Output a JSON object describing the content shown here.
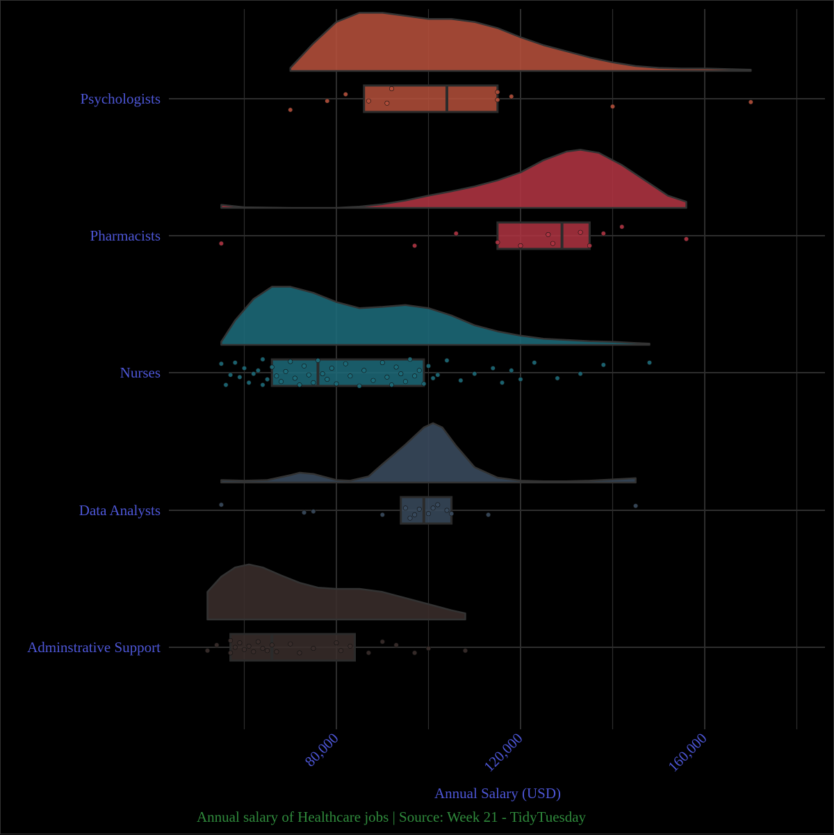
{
  "chart_data": {
    "type": "raincloud",
    "caption": "Annual salary of Healthcare jobs | Source: Week 21 - TidyTuesday",
    "xlabel": "Annual Salary (USD)",
    "ylabel": "",
    "xlim": [
      40000,
      180000
    ],
    "x_ticks": [
      80000,
      120000,
      160000
    ],
    "x_tick_labels": [
      "80,000",
      "120,000",
      "160,000"
    ],
    "x_minor_gridlines": [
      60000,
      100000,
      140000,
      180000
    ],
    "grid": true,
    "legend": "none",
    "colors": {
      "background": "#000000",
      "grid": "#2e2e2e",
      "axis_text": "#4d56d6",
      "caption": "#2f8a3c",
      "box_outline": "#2b2b2b"
    },
    "categories": [
      "Psychologists",
      "Pharmacists",
      "Nurses",
      "Data Analysts",
      "Adminstrative Support"
    ],
    "series": [
      {
        "name": "Psychologists",
        "color": "#b5503b",
        "box": {
          "q1": 86000,
          "median": 104000,
          "q3": 115000
        },
        "density": [
          [
            70000,
            0.05
          ],
          [
            75000,
            0.45
          ],
          [
            80000,
            0.8
          ],
          [
            85000,
            0.95
          ],
          [
            90000,
            0.95
          ],
          [
            95000,
            0.9
          ],
          [
            100000,
            0.85
          ],
          [
            105000,
            0.85
          ],
          [
            110000,
            0.8
          ],
          [
            115000,
            0.7
          ],
          [
            120000,
            0.55
          ],
          [
            125000,
            0.42
          ],
          [
            130000,
            0.32
          ],
          [
            135000,
            0.22
          ],
          [
            140000,
            0.14
          ],
          [
            145000,
            0.08
          ],
          [
            150000,
            0.05
          ],
          [
            155000,
            0.04
          ],
          [
            160000,
            0.04
          ],
          [
            165000,
            0.03
          ],
          [
            170000,
            0.02
          ]
        ],
        "points": [
          [
            70000,
            0.5
          ],
          [
            78000,
            0.1
          ],
          [
            82000,
            -0.2
          ],
          [
            87000,
            0.1
          ],
          [
            91000,
            0.2
          ],
          [
            92000,
            -0.45
          ],
          [
            115000,
            -0.3
          ],
          [
            115000,
            0.05
          ],
          [
            118000,
            -0.1
          ],
          [
            140000,
            0.35
          ],
          [
            170000,
            0.15
          ]
        ]
      },
      {
        "name": "Pharmacists",
        "color": "#b03442",
        "box": {
          "q1": 115000,
          "median": 129000,
          "q3": 135000
        },
        "density": [
          [
            55000,
            0.05
          ],
          [
            60000,
            0.01
          ],
          [
            70000,
            0.0
          ],
          [
            80000,
            0.0
          ],
          [
            85000,
            0.02
          ],
          [
            90000,
            0.06
          ],
          [
            95000,
            0.12
          ],
          [
            100000,
            0.2
          ],
          [
            105000,
            0.27
          ],
          [
            110000,
            0.35
          ],
          [
            115000,
            0.45
          ],
          [
            120000,
            0.58
          ],
          [
            125000,
            0.78
          ],
          [
            130000,
            0.92
          ],
          [
            133000,
            0.95
          ],
          [
            137000,
            0.9
          ],
          [
            142000,
            0.7
          ],
          [
            148000,
            0.4
          ],
          [
            152000,
            0.2
          ],
          [
            156000,
            0.1
          ]
        ],
        "points": [
          [
            55000,
            0.35
          ],
          [
            97000,
            0.45
          ],
          [
            106000,
            -0.1
          ],
          [
            115000,
            0.3
          ],
          [
            120000,
            0.45
          ],
          [
            126000,
            -0.05
          ],
          [
            127000,
            0.35
          ],
          [
            133000,
            -0.15
          ],
          [
            135000,
            0.45
          ],
          [
            138000,
            -0.1
          ],
          [
            142000,
            -0.4
          ],
          [
            156000,
            0.15
          ]
        ]
      },
      {
        "name": "Nurses",
        "color": "#1d6b7a",
        "box": {
          "q1": 66000,
          "median": 76000,
          "q3": 99000
        },
        "density": [
          [
            55000,
            0.05
          ],
          [
            58000,
            0.4
          ],
          [
            62000,
            0.75
          ],
          [
            66000,
            0.95
          ],
          [
            70000,
            0.95
          ],
          [
            75000,
            0.85
          ],
          [
            80000,
            0.7
          ],
          [
            85000,
            0.6
          ],
          [
            90000,
            0.62
          ],
          [
            95000,
            0.65
          ],
          [
            100000,
            0.6
          ],
          [
            105000,
            0.48
          ],
          [
            110000,
            0.32
          ],
          [
            115000,
            0.22
          ],
          [
            120000,
            0.15
          ],
          [
            125000,
            0.1
          ],
          [
            130000,
            0.08
          ],
          [
            135000,
            0.06
          ],
          [
            140000,
            0.05
          ],
          [
            145000,
            0.03
          ],
          [
            148000,
            0.02
          ]
        ],
        "points": [
          [
            55000,
            -0.4
          ],
          [
            56000,
            0.55
          ],
          [
            57000,
            0.1
          ],
          [
            58000,
            -0.45
          ],
          [
            59000,
            0.2
          ],
          [
            60000,
            -0.2
          ],
          [
            61000,
            0.45
          ],
          [
            62000,
            0.05
          ],
          [
            63000,
            -0.1
          ],
          [
            64000,
            0.55
          ],
          [
            64000,
            -0.6
          ],
          [
            65000,
            0.3
          ],
          [
            66000,
            -0.25
          ],
          [
            67000,
            0.15
          ],
          [
            68000,
            0.4
          ],
          [
            69000,
            -0.05
          ],
          [
            70000,
            -0.5
          ],
          [
            71000,
            0.25
          ],
          [
            72000,
            0.55
          ],
          [
            73000,
            -0.3
          ],
          [
            74000,
            0.1
          ],
          [
            75000,
            0.45
          ],
          [
            76000,
            -0.55
          ],
          [
            77000,
            0.05
          ],
          [
            78000,
            0.3
          ],
          [
            79000,
            -0.2
          ],
          [
            80000,
            0.5
          ],
          [
            82000,
            -0.4
          ],
          [
            83000,
            0.15
          ],
          [
            85000,
            0.6
          ],
          [
            86000,
            -0.1
          ],
          [
            88000,
            0.35
          ],
          [
            90000,
            -0.45
          ],
          [
            91000,
            0.2
          ],
          [
            92000,
            0.55
          ],
          [
            93000,
            -0.25
          ],
          [
            94000,
            0.05
          ],
          [
            95000,
            0.4
          ],
          [
            96000,
            -0.6
          ],
          [
            97000,
            0.15
          ],
          [
            98000,
            -0.1
          ],
          [
            99000,
            0.5
          ],
          [
            100000,
            -0.3
          ],
          [
            101000,
            0.25
          ],
          [
            102000,
            0.1
          ],
          [
            104000,
            -0.55
          ],
          [
            107000,
            0.35
          ],
          [
            110000,
            0.05
          ],
          [
            114000,
            -0.2
          ],
          [
            116000,
            0.45
          ],
          [
            118000,
            -0.1
          ],
          [
            120000,
            0.3
          ],
          [
            123000,
            -0.45
          ],
          [
            128000,
            0.25
          ],
          [
            133000,
            0.05
          ],
          [
            138000,
            -0.35
          ],
          [
            148000,
            -0.45
          ]
        ]
      },
      {
        "name": "Data Analysts",
        "color": "#3a4b5e",
        "box": {
          "q1": 94000,
          "median": 99000,
          "q3": 105000
        },
        "density": [
          [
            55000,
            0.04
          ],
          [
            60000,
            0.03
          ],
          [
            65000,
            0.04
          ],
          [
            70000,
            0.12
          ],
          [
            72000,
            0.16
          ],
          [
            75000,
            0.14
          ],
          [
            80000,
            0.04
          ],
          [
            83000,
            0.03
          ],
          [
            87000,
            0.1
          ],
          [
            90000,
            0.3
          ],
          [
            95000,
            0.62
          ],
          [
            99000,
            0.9
          ],
          [
            101000,
            0.97
          ],
          [
            103000,
            0.9
          ],
          [
            106000,
            0.6
          ],
          [
            110000,
            0.25
          ],
          [
            115000,
            0.08
          ],
          [
            120000,
            0.03
          ],
          [
            125000,
            0.02
          ],
          [
            130000,
            0.02
          ],
          [
            135000,
            0.03
          ],
          [
            140000,
            0.05
          ],
          [
            145000,
            0.07
          ]
        ],
        "points": [
          [
            55000,
            -0.25
          ],
          [
            73000,
            0.1
          ],
          [
            75000,
            0.05
          ],
          [
            90000,
            0.2
          ],
          [
            95000,
            -0.1
          ],
          [
            96000,
            0.35
          ],
          [
            97000,
            0.2
          ],
          [
            98000,
            -0.05
          ],
          [
            100000,
            0.15
          ],
          [
            101000,
            -0.1
          ],
          [
            102000,
            -0.25
          ],
          [
            104000,
            0.0
          ],
          [
            105000,
            0.15
          ],
          [
            113000,
            0.2
          ],
          [
            145000,
            -0.2
          ]
        ]
      },
      {
        "name": "Adminstrative Support",
        "color": "#3a2e2b",
        "box": {
          "q1": 57000,
          "median": 66000,
          "q3": 84000
        },
        "density": [
          [
            52000,
            0.45
          ],
          [
            55000,
            0.7
          ],
          [
            58000,
            0.85
          ],
          [
            61000,
            0.9
          ],
          [
            64000,
            0.85
          ],
          [
            68000,
            0.72
          ],
          [
            72000,
            0.6
          ],
          [
            76000,
            0.52
          ],
          [
            80000,
            0.5
          ],
          [
            85000,
            0.5
          ],
          [
            90000,
            0.45
          ],
          [
            95000,
            0.35
          ],
          [
            100000,
            0.25
          ],
          [
            105000,
            0.15
          ],
          [
            108000,
            0.1
          ]
        ],
        "points": [
          [
            52000,
            0.15
          ],
          [
            54000,
            -0.1
          ],
          [
            57000,
            -0.3
          ],
          [
            57000,
            0.25
          ],
          [
            58000,
            0.0
          ],
          [
            59000,
            -0.2
          ],
          [
            60000,
            0.1
          ],
          [
            61000,
            -0.05
          ],
          [
            62000,
            0.2
          ],
          [
            63000,
            -0.25
          ],
          [
            64000,
            0.05
          ],
          [
            65000,
            0.15
          ],
          [
            66000,
            -0.1
          ],
          [
            67000,
            0.2
          ],
          [
            70000,
            -0.15
          ],
          [
            72000,
            0.25
          ],
          [
            75000,
            0.05
          ],
          [
            80000,
            -0.2
          ],
          [
            81000,
            0.15
          ],
          [
            83000,
            -0.05
          ],
          [
            87000,
            0.25
          ],
          [
            90000,
            -0.25
          ],
          [
            93000,
            -0.1
          ],
          [
            97000,
            0.25
          ],
          [
            100000,
            0.05
          ],
          [
            108000,
            0.15
          ]
        ]
      }
    ]
  }
}
